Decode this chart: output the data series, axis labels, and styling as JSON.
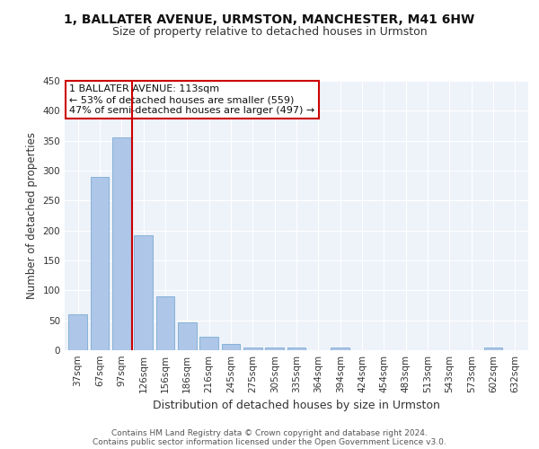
{
  "title": "1, BALLATER AVENUE, URMSTON, MANCHESTER, M41 6HW",
  "subtitle": "Size of property relative to detached houses in Urmston",
  "xlabel": "Distribution of detached houses by size in Urmston",
  "ylabel": "Number of detached properties",
  "categories": [
    "37sqm",
    "67sqm",
    "97sqm",
    "126sqm",
    "156sqm",
    "186sqm",
    "216sqm",
    "245sqm",
    "275sqm",
    "305sqm",
    "335sqm",
    "364sqm",
    "394sqm",
    "424sqm",
    "454sqm",
    "483sqm",
    "513sqm",
    "543sqm",
    "573sqm",
    "602sqm",
    "632sqm"
  ],
  "values": [
    60,
    290,
    355,
    192,
    90,
    46,
    22,
    10,
    5,
    5,
    5,
    0,
    5,
    0,
    0,
    0,
    0,
    0,
    0,
    4,
    0
  ],
  "bar_color": "#aec6e8",
  "bar_edge_color": "#7aacd4",
  "vline_x": 2.5,
  "vline_color": "#cc0000",
  "annotation_text": "1 BALLATER AVENUE: 113sqm\n← 53% of detached houses are smaller (559)\n47% of semi-detached houses are larger (497) →",
  "annotation_box_color": "#ffffff",
  "annotation_box_edge": "#cc0000",
  "ylim": [
    0,
    450
  ],
  "yticks": [
    0,
    50,
    100,
    150,
    200,
    250,
    300,
    350,
    400,
    450
  ],
  "footer": "Contains HM Land Registry data © Crown copyright and database right 2024.\nContains public sector information licensed under the Open Government Licence v3.0.",
  "bg_color": "#eef2f9",
  "grid_color": "#ffffff",
  "title_fontsize": 10,
  "subtitle_fontsize": 9,
  "axis_label_fontsize": 8.5,
  "tick_fontsize": 7.5,
  "annotation_fontsize": 8,
  "footer_fontsize": 6.5
}
